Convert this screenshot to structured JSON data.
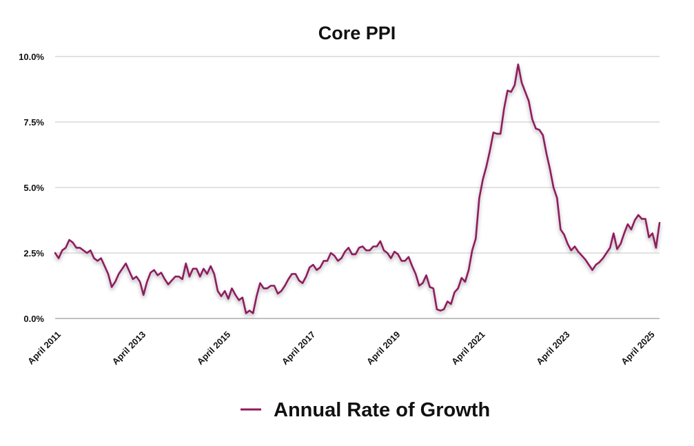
{
  "chart_data": {
    "type": "line",
    "title": "Core PPI",
    "xlabel": "",
    "ylabel": "",
    "ylim": [
      0,
      10
    ],
    "y_ticks": [
      0,
      2.5,
      5,
      7.5,
      10
    ],
    "y_tick_labels": [
      "0.0%",
      "2.5%",
      "5.0%",
      "7.5%",
      "10.0%"
    ],
    "x_tick_labels": [
      "April 2011",
      "April 2013",
      "April 2015",
      "April 2017",
      "April 2019",
      "April 2021",
      "April 2023",
      "April 2025"
    ],
    "x_tick_positions": [
      0,
      24,
      48,
      72,
      96,
      120,
      144,
      168
    ],
    "grid": true,
    "legend_position": "bottom-center",
    "series": [
      {
        "name": "Annual Rate of Growth",
        "color": "#8e1b5e",
        "values": [
          2.5,
          2.3,
          2.6,
          2.7,
          3.0,
          2.9,
          2.7,
          2.7,
          2.6,
          2.5,
          2.6,
          2.3,
          2.2,
          2.3,
          2.0,
          1.7,
          1.2,
          1.4,
          1.7,
          1.9,
          2.1,
          1.8,
          1.5,
          1.6,
          1.4,
          0.9,
          1.4,
          1.75,
          1.85,
          1.65,
          1.75,
          1.5,
          1.3,
          1.45,
          1.6,
          1.6,
          1.5,
          2.1,
          1.6,
          1.9,
          1.9,
          1.6,
          1.9,
          1.7,
          2.0,
          1.7,
          1.05,
          0.85,
          1.05,
          0.75,
          1.15,
          0.9,
          0.7,
          0.8,
          0.2,
          0.3,
          0.2,
          0.85,
          1.35,
          1.15,
          1.15,
          1.25,
          1.25,
          0.95,
          1.05,
          1.25,
          1.5,
          1.7,
          1.7,
          1.45,
          1.35,
          1.6,
          1.95,
          2.05,
          1.85,
          1.95,
          2.2,
          2.2,
          2.5,
          2.4,
          2.2,
          2.3,
          2.55,
          2.7,
          2.45,
          2.45,
          2.7,
          2.75,
          2.6,
          2.6,
          2.75,
          2.75,
          2.95,
          2.6,
          2.5,
          2.3,
          2.55,
          2.45,
          2.2,
          2.2,
          2.35,
          2.0,
          1.7,
          1.25,
          1.35,
          1.65,
          1.2,
          1.15,
          0.35,
          0.3,
          0.35,
          0.65,
          0.55,
          1.0,
          1.15,
          1.55,
          1.4,
          1.85,
          2.6,
          3.05,
          4.6,
          5.3,
          5.8,
          6.4,
          7.1,
          7.05,
          7.05,
          8.0,
          8.7,
          8.65,
          8.9,
          9.7,
          9.0,
          8.65,
          8.3,
          7.6,
          7.25,
          7.2,
          7.0,
          6.3,
          5.7,
          5.0,
          4.6,
          3.4,
          3.2,
          2.85,
          2.6,
          2.75,
          2.55,
          2.4,
          2.25,
          2.05,
          1.85,
          2.05,
          2.15,
          2.3,
          2.5,
          2.7,
          3.25,
          2.65,
          2.85,
          3.25,
          3.6,
          3.4,
          3.75,
          3.95,
          3.8,
          3.8,
          3.1,
          3.25,
          2.7,
          3.65
        ]
      }
    ]
  }
}
